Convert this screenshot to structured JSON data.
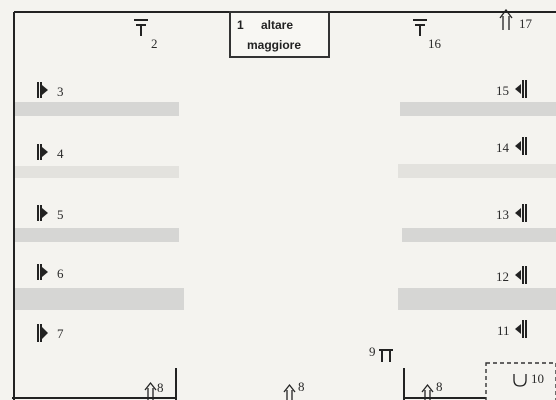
{
  "altar": {
    "number": "1",
    "line1": "altare",
    "line2": "maggiore"
  },
  "labels": {
    "n2": "2",
    "n3": "3",
    "n4": "4",
    "n5": "5",
    "n6": "6",
    "n7": "7",
    "n8a": "8",
    "n8b": "8",
    "n8c": "8",
    "n9": "9",
    "n10": "10",
    "n11": "11",
    "n12": "12",
    "n13": "13",
    "n14": "14",
    "n15": "15",
    "n16": "16",
    "n17": "17"
  },
  "icons": {
    "tomb_cross": "tomb-cross-icon",
    "side_altar_left": "side-altar-left-icon",
    "side_altar_right": "side-altar-right-icon",
    "door_arrow": "door-arrow-icon",
    "stoup": "stoup-icon"
  },
  "colors": {
    "ink": "#222222",
    "paper": "#f4f3ef",
    "band": "#d6d6d4"
  }
}
